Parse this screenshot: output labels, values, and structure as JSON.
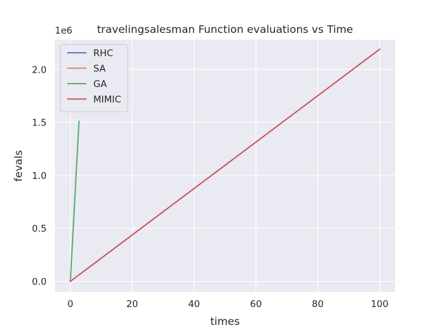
{
  "chart_data": {
    "type": "line",
    "title": "travelingsalesman Function evaluations vs Time",
    "xlabel": "times",
    "ylabel": "fevals",
    "y_offset_label": "1e6",
    "xlim": [
      -5,
      105
    ],
    "ylim": [
      -0.1,
      2.28
    ],
    "x_ticks": [
      0,
      20,
      40,
      60,
      80,
      100
    ],
    "x_tick_labels": [
      "0",
      "20",
      "40",
      "60",
      "80",
      "100"
    ],
    "y_ticks": [
      0.0,
      0.5,
      1.0,
      1.5,
      2.0
    ],
    "y_tick_labels": [
      "0.0",
      "0.5",
      "1.0",
      "1.5",
      "2.0"
    ],
    "grid": true,
    "legend_position": "top-left",
    "series": [
      {
        "name": "RHC",
        "color": "#4c72b0",
        "x": [
          0,
          0.05
        ],
        "y": [
          0,
          0.0001
        ]
      },
      {
        "name": "SA",
        "color": "#dd8452",
        "x": [
          0,
          0.05
        ],
        "y": [
          0,
          0.0001
        ]
      },
      {
        "name": "GA",
        "color": "#55a868",
        "x": [
          0,
          2.8
        ],
        "y": [
          0,
          1.51
        ]
      },
      {
        "name": "MIMIC",
        "color": "#c44e52",
        "x": [
          0,
          100
        ],
        "y": [
          0,
          2.19
        ]
      }
    ]
  }
}
